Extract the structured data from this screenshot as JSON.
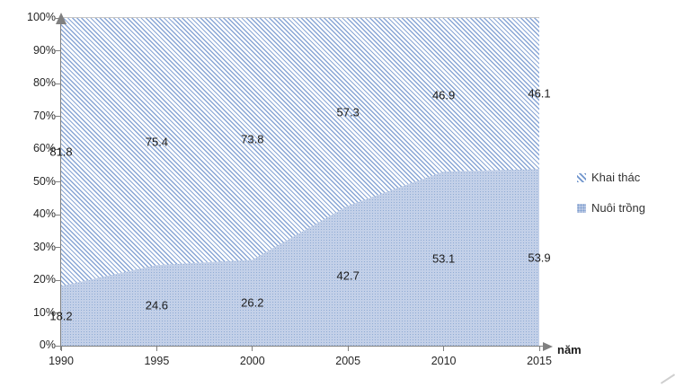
{
  "chart_data": {
    "type": "area",
    "subtype": "stacked-100-percent",
    "x": [
      "1990",
      "1995",
      "2000",
      "2005",
      "2010",
      "2015"
    ],
    "series": [
      {
        "name": "Khai thác",
        "values": [
          81.8,
          75.4,
          73.8,
          57.3,
          46.9,
          46.1
        ],
        "fill": "diagonal-hatch"
      },
      {
        "name": "Nuôi trồng",
        "values": [
          18.2,
          24.6,
          26.2,
          42.7,
          53.1,
          53.9
        ],
        "fill": "dotted"
      }
    ],
    "xlabel": "năm",
    "ylabel": "",
    "title": "",
    "y_ticks": [
      "100%",
      "90%",
      "80%",
      "70%",
      "60%",
      "50%",
      "40%",
      "30%",
      "20%",
      "10%",
      "0%"
    ],
    "ylim": [
      0,
      100
    ],
    "grid": "top-line-only",
    "legend_position": "right",
    "data_labels_visible": true,
    "axis_arrows": true
  },
  "colors": {
    "hatch_stripe": "#89a6d5",
    "dot_fill": "#8fabd4",
    "dot_background": "#c3d0e8",
    "axis": "#808080",
    "top_gridline": "#c6c6c6",
    "label_text": "#1c1c1c"
  }
}
